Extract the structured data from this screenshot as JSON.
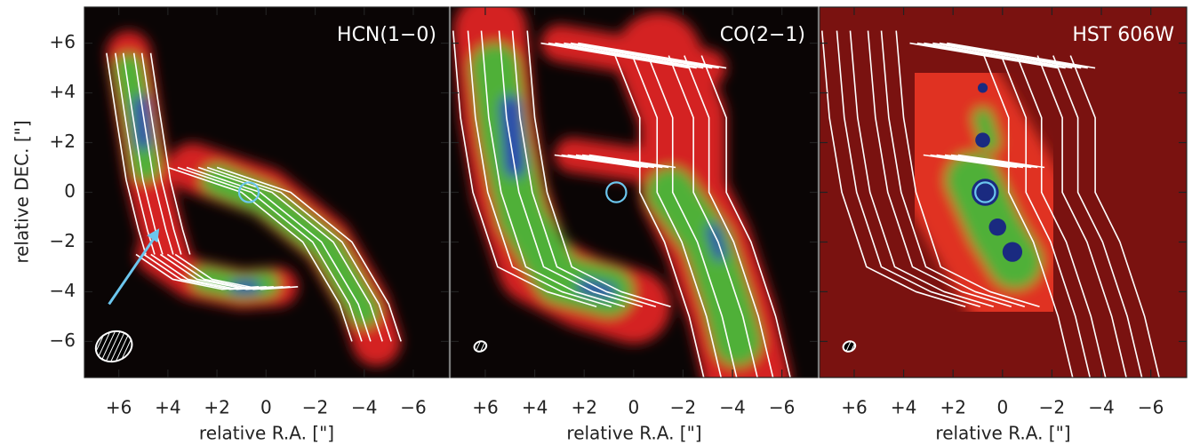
{
  "chart_data": [
    {
      "type": "image",
      "title": "HCN(1−0)",
      "xlabel": "relative R.A. [\"]",
      "ylabel": "relative DEC. [\"]",
      "xlim": [
        7.4,
        -7.45
      ],
      "ylim": [
        -7.45,
        7.45
      ],
      "xticks": [
        {
          "value": 6,
          "label": "+6"
        },
        {
          "value": 4,
          "label": "+4"
        },
        {
          "value": 2,
          "label": "+2"
        },
        0,
        {
          "value": -2,
          "label": "−2"
        },
        {
          "value": -4,
          "label": "−4"
        },
        {
          "value": -6,
          "label": "−6"
        }
      ],
      "yticks": [
        {
          "value": 6,
          "label": "+6"
        },
        {
          "value": 4,
          "label": "+4"
        },
        {
          "value": 2,
          "label": "+2"
        },
        0,
        {
          "value": -2,
          "label": "−2"
        },
        {
          "value": -4,
          "label": "−4"
        },
        {
          "value": -6,
          "label": "−6"
        }
      ]
    },
    {
      "type": "image",
      "title": "CO(2−1)",
      "xlabel": "relative R.A. [\"]",
      "xlim": [
        7.4,
        -7.45
      ],
      "ylim": [
        -7.45,
        7.45
      ],
      "xticks": [
        {
          "value": 6,
          "label": "+6"
        },
        {
          "value": 4,
          "label": "+4"
        },
        {
          "value": 2,
          "label": "+2"
        },
        0,
        {
          "value": -2,
          "label": "−2"
        },
        {
          "value": -4,
          "label": "−4"
        },
        {
          "value": -6,
          "label": "−6"
        }
      ],
      "yticks": [
        6,
        4,
        2,
        0,
        -2,
        -4,
        -6
      ]
    },
    {
      "type": "image",
      "title": "HST 606W",
      "xlabel": "relative R.A. [\"]",
      "xlim": [
        7.4,
        -7.45
      ],
      "ylim": [
        -7.45,
        7.45
      ],
      "xticks": [
        {
          "value": 6,
          "label": "+6"
        },
        {
          "value": 4,
          "label": "+4"
        },
        {
          "value": 2,
          "label": "+2"
        },
        0,
        {
          "value": -2,
          "label": "−2"
        },
        {
          "value": -4,
          "label": "−4"
        },
        {
          "value": -6,
          "label": "−6"
        }
      ],
      "yticks": [
        6,
        4,
        2,
        0,
        -2,
        -4,
        -6
      ]
    }
  ]
}
